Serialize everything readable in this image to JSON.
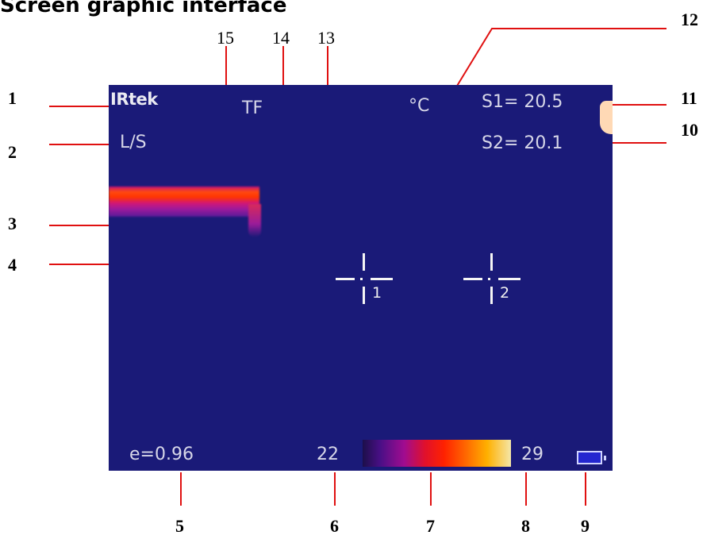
{
  "title": "Screen graphic interface",
  "callouts": {
    "left": [
      "1",
      "2",
      "3",
      "4"
    ],
    "right": [
      "12",
      "11",
      "10"
    ],
    "top": [
      "15",
      "14",
      "13"
    ],
    "bottom": [
      "5",
      "6",
      "7",
      "8",
      "9"
    ]
  },
  "screen": {
    "brand": "IRtek",
    "mode": "L/S",
    "focus": "TF",
    "unit": "°C",
    "spot1": "S1= 20.5",
    "spot2": "S2= 20.1",
    "emissivity": "e=0.96",
    "range_min": "22",
    "range_max": "29",
    "cursor1_label": "1",
    "cursor2_label": "2"
  },
  "colors": {
    "screen_bg": "#1a1a78",
    "leader_line": "#e01010"
  }
}
